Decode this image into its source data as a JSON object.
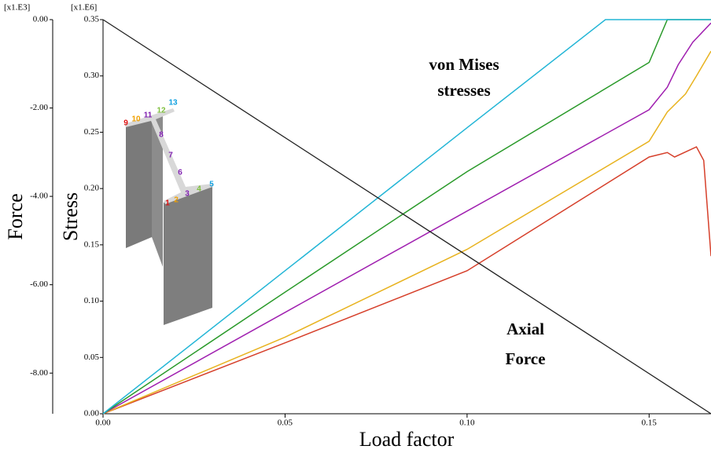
{
  "chart_data": {
    "type": "line",
    "xlabel": "Load factor",
    "ylabel": "Stress",
    "y2label": "Force",
    "y_multiplier": "[x1.E6]",
    "y2_multiplier": "[x1.E3]",
    "annotations": [
      "von Mises stresses",
      "Axial Force"
    ],
    "xlim": [
      0,
      0.167
    ],
    "xticks": [
      {
        "value": 0,
        "label": "0.00"
      },
      0.05,
      {
        "value": 0.1,
        "label": "0.10"
      },
      0.15
    ],
    "ylim": [
      0,
      0.35
    ],
    "yticks": [
      {
        "value": 0,
        "label": "0.00"
      },
      0.05,
      {
        "value": 0.1,
        "label": "0.10"
      },
      0.15,
      {
        "value": 0.2,
        "label": "0.20"
      },
      0.25,
      {
        "value": 0.3,
        "label": "0.30"
      },
      0.35
    ],
    "y2lim": [
      -8.92,
      0
    ],
    "y2ticks": [
      {
        "value": 0,
        "label": "0.00"
      },
      {
        "value": -2,
        "label": "-2.00"
      },
      {
        "value": -4,
        "label": "-4.00"
      },
      {
        "value": -6,
        "label": "-6.00"
      },
      {
        "value": -8,
        "label": "-8.00"
      }
    ],
    "series": [
      {
        "color": "#d6402b",
        "x": [
          0,
          0.05,
          0.1,
          0.15,
          0.155,
          0.157,
          0.163,
          0.165,
          0.167
        ],
        "values": [
          0,
          0.063,
          0.127,
          0.228,
          0.232,
          0.228,
          0.237,
          0.225,
          0.14
        ]
      },
      {
        "color": "#e8b320",
        "x": [
          0,
          0.05,
          0.1,
          0.15,
          0.155,
          0.16,
          0.163,
          0.167
        ],
        "values": [
          0,
          0.068,
          0.146,
          0.242,
          0.268,
          0.284,
          0.3,
          0.322
        ]
      },
      {
        "color": "#a020b0",
        "x": [
          0,
          0.05,
          0.1,
          0.15,
          0.155,
          0.158,
          0.162,
          0.167
        ],
        "values": [
          0,
          0.09,
          0.18,
          0.27,
          0.29,
          0.31,
          0.33,
          0.347
        ]
      },
      {
        "color": "#2a9a2a",
        "x": [
          0,
          0.05,
          0.1,
          0.15,
          0.155,
          0.167
        ],
        "values": [
          0,
          0.108,
          0.215,
          0.312,
          0.35,
          0.35
        ]
      },
      {
        "color": "#22b5d6",
        "x": [
          0,
          0.05,
          0.1,
          0.138,
          0.167
        ],
        "values": [
          0,
          0.127,
          0.254,
          0.35,
          0.35
        ]
      },
      {
        "color": "#222222",
        "axis": "y2",
        "x": [
          0,
          0.167
        ],
        "values": [
          0,
          -8.92
        ]
      }
    ],
    "section_labels": [
      "1",
      "2",
      "3",
      "4",
      "5",
      "6",
      "7",
      "8",
      "9",
      "10",
      "11",
      "12",
      "13"
    ],
    "section_label_colors": [
      "#e01010",
      "#f0a000",
      "#8020b0",
      "#80c040",
      "#10a0e0",
      "#8020b0",
      "#8020b0",
      "#8020b0",
      "#e01010",
      "#f0a000",
      "#8020b0",
      "#80c040",
      "#10a0e0"
    ]
  }
}
